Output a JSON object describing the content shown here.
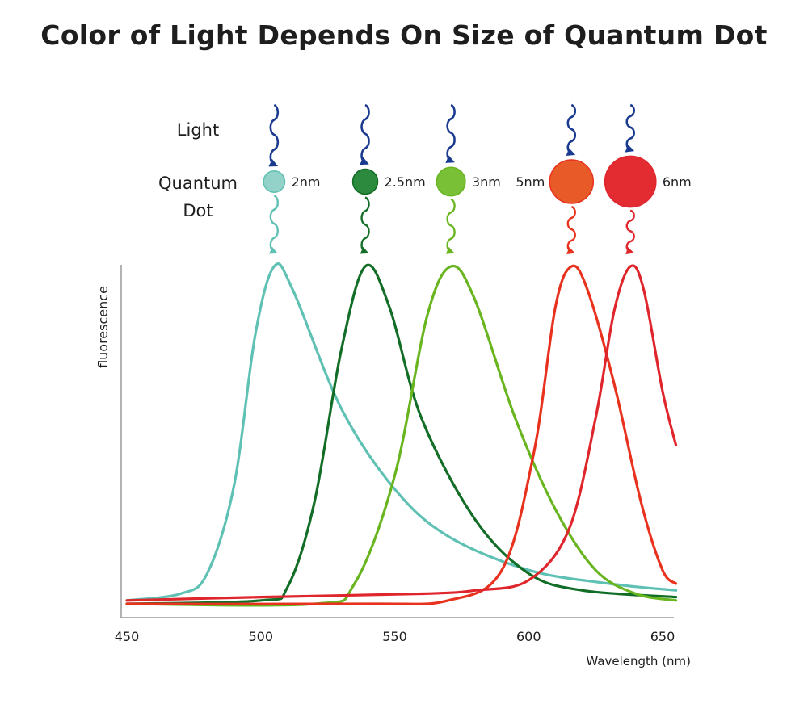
{
  "title": "Color of Light Depends On Size of Quantum Dot",
  "row_labels": {
    "light": "Light",
    "dot_line1": "Quantum",
    "dot_line2": "Dot"
  },
  "colors": {
    "light_wave": "#1a3a8f",
    "axis": "#9a9a9a",
    "text": "#1e1e1e"
  },
  "chart_data": {
    "type": "line",
    "title": "Color of Light Depends On Size of Quantum Dot",
    "xlabel": "Wavelength (nm)",
    "ylabel": "fluorescence",
    "xlim": [
      450,
      650
    ],
    "xticks": [
      450,
      500,
      550,
      600,
      650
    ],
    "xtick_labels": [
      "450",
      "500",
      "550",
      "600",
      "650"
    ],
    "grid": false,
    "legend": "none",
    "y_units": "relative intensity (0-1)",
    "series": [
      {
        "dot_label": "2nm",
        "color": "#5fc0b4",
        "dot_color": "#93d2c8",
        "dot_size_nm": 2,
        "points": [
          [
            450,
            0.01
          ],
          [
            470,
            0.03
          ],
          [
            480,
            0.09
          ],
          [
            490,
            0.35
          ],
          [
            498,
            0.8
          ],
          [
            505,
            1.0
          ],
          [
            512,
            0.93
          ],
          [
            530,
            0.58
          ],
          [
            550,
            0.34
          ],
          [
            570,
            0.2
          ],
          [
            600,
            0.1
          ],
          [
            630,
            0.06
          ],
          [
            655,
            0.04
          ]
        ]
      },
      {
        "dot_label": "2.5nm",
        "color": "#126d27",
        "dot_color": "#2b8a3e",
        "dot_size_nm": 2.5,
        "points": [
          [
            450,
            0.0
          ],
          [
            500,
            0.01
          ],
          [
            510,
            0.05
          ],
          [
            520,
            0.3
          ],
          [
            530,
            0.75
          ],
          [
            539,
            1.0
          ],
          [
            548,
            0.88
          ],
          [
            560,
            0.55
          ],
          [
            580,
            0.25
          ],
          [
            600,
            0.09
          ],
          [
            620,
            0.04
          ],
          [
            655,
            0.02
          ]
        ]
      },
      {
        "dot_label": "3nm",
        "color": "#68b51f",
        "dot_color": "#7ac036",
        "dot_size_nm": 3,
        "points": [
          [
            450,
            0.0
          ],
          [
            520,
            0.0
          ],
          [
            535,
            0.06
          ],
          [
            550,
            0.38
          ],
          [
            562,
            0.85
          ],
          [
            571,
            1.0
          ],
          [
            580,
            0.9
          ],
          [
            595,
            0.55
          ],
          [
            610,
            0.28
          ],
          [
            625,
            0.1
          ],
          [
            640,
            0.03
          ],
          [
            655,
            0.01
          ]
        ]
      },
      {
        "dot_label": "5nm",
        "color": "#e8321e",
        "dot_color": "#e85a28",
        "dot_size_nm": 5,
        "points": [
          [
            450,
            0.0
          ],
          [
            540,
            0.0
          ],
          [
            570,
            0.01
          ],
          [
            590,
            0.1
          ],
          [
            602,
            0.45
          ],
          [
            610,
            0.88
          ],
          [
            616,
            1.0
          ],
          [
            622,
            0.93
          ],
          [
            632,
            0.65
          ],
          [
            642,
            0.3
          ],
          [
            650,
            0.1
          ],
          [
            655,
            0.06
          ]
        ]
      },
      {
        "dot_label": "6nm",
        "color": "#e0262d",
        "dot_color": "#e32b32",
        "dot_size_nm": 6,
        "points": [
          [
            450,
            0.01
          ],
          [
            500,
            0.02
          ],
          [
            560,
            0.03
          ],
          [
            580,
            0.04
          ],
          [
            600,
            0.07
          ],
          [
            615,
            0.22
          ],
          [
            625,
            0.55
          ],
          [
            632,
            0.87
          ],
          [
            638,
            1.0
          ],
          [
            643,
            0.93
          ],
          [
            650,
            0.63
          ],
          [
            655,
            0.47
          ]
        ]
      }
    ]
  }
}
